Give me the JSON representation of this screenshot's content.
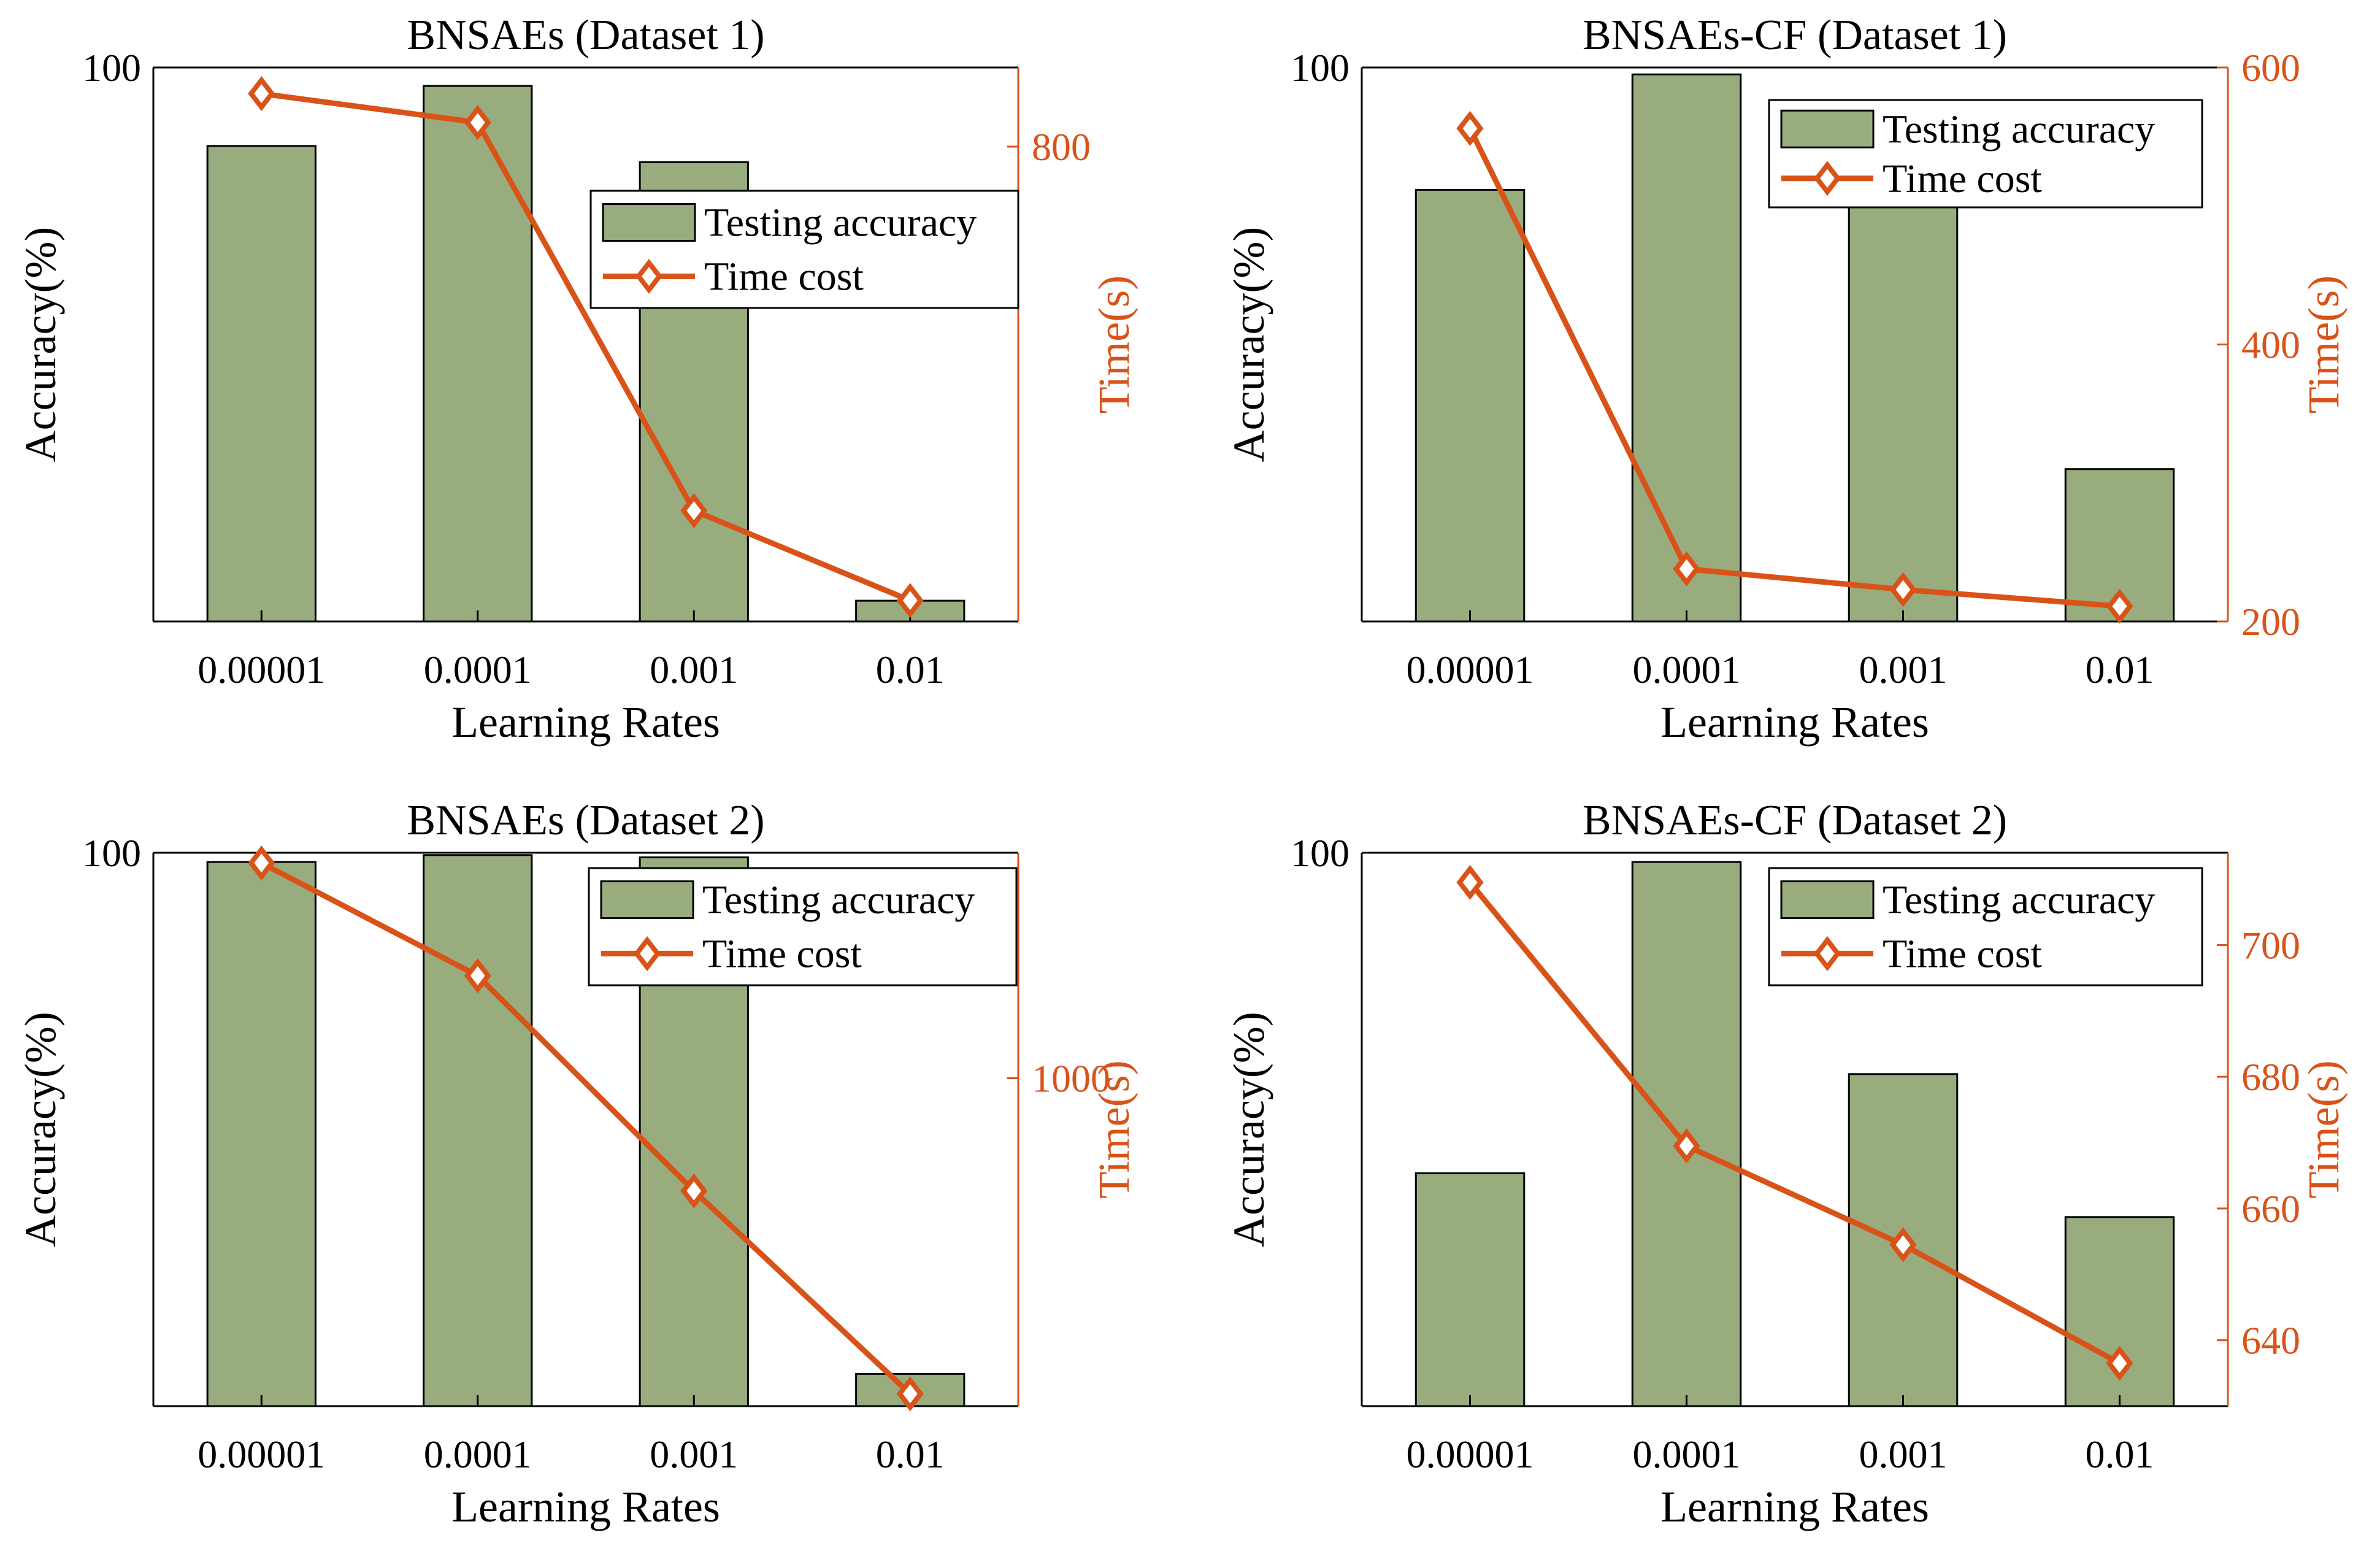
{
  "figure": {
    "bar_series_name": "Testing accuracy",
    "line_series_name": "Time cost",
    "colors": {
      "bar": "#98ac7e",
      "line": "#d95319",
      "axis": "#000000"
    }
  },
  "chart_data": [
    {
      "type": "bar",
      "title": "BNSAEs (Dataset 1)",
      "xlabel": "Learning Rates",
      "ylabel": "Accuracy(%)",
      "y2label": "Time(s)",
      "categories": [
        "0.00001",
        "0.0001",
        "0.001",
        "0.01"
      ],
      "ylim": [
        88,
        100
      ],
      "yticks": [
        100
      ],
      "y2lim": [
        680,
        820
      ],
      "y2ticks": [
        800
      ],
      "legend_position": "right",
      "series": [
        {
          "name": "Testing accuracy",
          "axis": "left",
          "kind": "bar",
          "values": [
            98.3,
            99.6,
            97.95,
            88.45
          ]
        },
        {
          "name": "Time cost",
          "axis": "right",
          "kind": "line",
          "values": [
            813.4,
            806.1,
            708.0,
            685.3
          ]
        }
      ]
    },
    {
      "type": "bar",
      "title": "BNSAEs-CF (Dataset 1)",
      "xlabel": "Learning Rates",
      "ylabel": "Accuracy(%)",
      "y2label": "Time(s)",
      "categories": [
        "0.00001",
        "0.0001",
        "0.001",
        "0.01"
      ],
      "ylim": [
        88,
        100
      ],
      "yticks": [
        100
      ],
      "y2lim": [
        200,
        600
      ],
      "y2ticks": [
        200,
        400,
        600
      ],
      "legend_position": "top-right",
      "series": [
        {
          "name": "Testing accuracy",
          "axis": "left",
          "kind": "bar",
          "values": [
            97.35,
            99.85,
            97.7,
            91.3
          ]
        },
        {
          "name": "Time cost",
          "axis": "right",
          "kind": "line",
          "values": [
            556,
            238,
            223,
            211
          ]
        }
      ]
    },
    {
      "type": "bar",
      "title": "BNSAEs (Dataset 2)",
      "xlabel": "Learning Rates",
      "ylabel": "Accuracy(%)",
      "y2label": "Time(s)",
      "categories": [
        "0.00001",
        "0.0001",
        "0.001",
        "0.01"
      ],
      "ylim": [
        88,
        100
      ],
      "yticks": [
        100
      ],
      "y2lim": [
        840,
        1110
      ],
      "y2ticks": [
        1000
      ],
      "legend_position": "top-right",
      "series": [
        {
          "name": "Testing accuracy",
          "axis": "left",
          "kind": "bar",
          "values": [
            99.8,
            99.95,
            99.9,
            88.7
          ]
        },
        {
          "name": "Time cost",
          "axis": "right",
          "kind": "line",
          "values": [
            1105,
            1050,
            945,
            846
          ]
        }
      ]
    },
    {
      "type": "bar",
      "title": "BNSAEs-CF (Dataset 2)",
      "xlabel": "Learning Rates",
      "ylabel": "Accuracy(%)",
      "y2label": "Time(s)",
      "categories": [
        "0.00001",
        "0.0001",
        "0.001",
        "0.01"
      ],
      "ylim": [
        88,
        100
      ],
      "yticks": [
        100
      ],
      "y2lim": [
        630,
        714
      ],
      "y2ticks": [
        640,
        660,
        680,
        700
      ],
      "legend_position": "top-right",
      "series": [
        {
          "name": "Testing accuracy",
          "axis": "left",
          "kind": "bar",
          "values": [
            93.05,
            99.8,
            95.2,
            92.1
          ]
        },
        {
          "name": "Time cost",
          "axis": "right",
          "kind": "line",
          "values": [
            709.5,
            669.5,
            654.5,
            636.5
          ]
        }
      ]
    }
  ]
}
